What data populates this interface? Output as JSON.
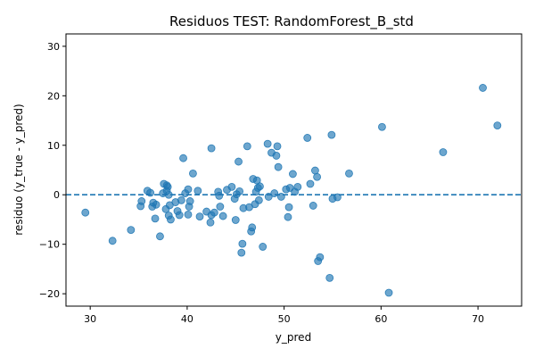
{
  "chart_data": {
    "type": "scatter",
    "title": "Residuos TEST: RandomForest_B_std",
    "xlabel": "y_pred",
    "ylabel": "residuo (y_true - y_pred)",
    "xlim": [
      27.5,
      74.5
    ],
    "ylim": [
      -22.5,
      32.5
    ],
    "xticks": [
      30,
      40,
      50,
      60,
      70
    ],
    "yticks": [
      -20,
      -10,
      0,
      10,
      20,
      30
    ],
    "grid": false,
    "reference_line": {
      "y": 0,
      "style": "dashed",
      "color": "#1f77b4"
    },
    "point_color": "#1f77b4",
    "x": [
      29.5,
      32.3,
      34.2,
      35.2,
      35.3,
      35.9,
      36.2,
      36.4,
      36.5,
      36.7,
      36.8,
      37.2,
      37.5,
      37.6,
      37.8,
      37.9,
      37.9,
      38.0,
      38.1,
      38.1,
      38.2,
      38.3,
      38.8,
      39.0,
      39.2,
      39.4,
      39.6,
      39.8,
      40.1,
      40.1,
      40.2,
      40.3,
      40.6,
      41.1,
      41.3,
      42.0,
      42.4,
      42.5,
      42.5,
      42.8,
      43.2,
      43.3,
      43.4,
      43.7,
      44.1,
      44.6,
      44.9,
      45.0,
      45.1,
      45.3,
      45.4,
      45.6,
      45.7,
      45.8,
      46.2,
      46.4,
      46.6,
      46.7,
      46.8,
      47.0,
      47.1,
      47.2,
      47.3,
      47.4,
      47.5,
      47.8,
      48.3,
      48.4,
      48.7,
      49.0,
      49.2,
      49.3,
      49.4,
      49.7,
      50.2,
      50.4,
      50.5,
      50.6,
      50.9,
      51.1,
      51.4,
      52.4,
      52.7,
      53.0,
      53.2,
      53.4,
      53.5,
      53.7,
      54.7,
      54.9,
      55.0,
      55.5,
      56.7,
      60.1,
      60.8,
      66.4,
      70.5,
      72.0
    ],
    "y": [
      -3.6,
      -9.3,
      -7.1,
      -2.3,
      -1.3,
      0.8,
      0.4,
      -2.4,
      -1.6,
      -4.8,
      -2.0,
      -8.4,
      0.3,
      2.2,
      -2.9,
      0.8,
      1.9,
      1.6,
      -4.2,
      0.0,
      -2.1,
      -5.0,
      -1.5,
      -3.3,
      -4.1,
      -1.1,
      7.4,
      0.3,
      -4.0,
      1.1,
      -2.4,
      -1.3,
      4.3,
      0.8,
      -4.4,
      -3.4,
      -5.6,
      -4.1,
      9.4,
      -3.6,
      0.6,
      -0.2,
      -2.4,
      -4.3,
      1.0,
      1.6,
      -0.8,
      -5.1,
      0.1,
      6.7,
      0.7,
      -11.7,
      -9.9,
      -2.7,
      9.8,
      -2.5,
      -7.4,
      -6.6,
      3.2,
      -1.9,
      0.6,
      2.9,
      1.4,
      -1.1,
      1.7,
      -10.5,
      10.3,
      -0.4,
      8.5,
      0.3,
      7.9,
      9.8,
      5.6,
      -0.4,
      1.1,
      -4.5,
      -2.5,
      1.4,
      4.2,
      0.6,
      1.6,
      11.5,
      2.2,
      -2.2,
      4.9,
      3.6,
      -13.4,
      -12.6,
      -16.8,
      12.1,
      -0.8,
      -0.5,
      4.3,
      13.7,
      -19.8,
      8.6,
      21.6,
      14.0
    ]
  }
}
